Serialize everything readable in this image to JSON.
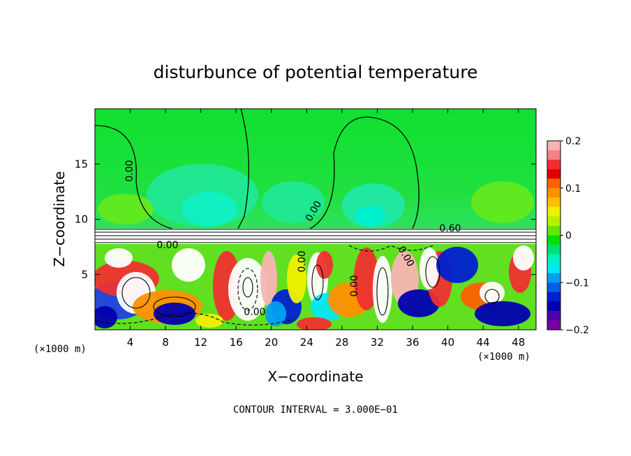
{
  "chart_data": {
    "type": "heatmap",
    "title": "disturbunce of potential temperature",
    "xlabel": "X−coordinate",
    "ylabel": "Z−coordinate",
    "x_unit_left": "(×1000 m)",
    "x_unit_right": "(×1000 m)",
    "xlim": [
      0,
      50
    ],
    "ylim": [
      0,
      20
    ],
    "x_ticks": [
      4,
      8,
      12,
      16,
      20,
      24,
      28,
      32,
      36,
      40,
      44,
      48
    ],
    "y_ticks": [
      5,
      10,
      15
    ],
    "footer": "CONTOUR INTERVAL = 3.000E−01",
    "colorbar": {
      "min": -0.2,
      "max": 0.2,
      "tick_values": [
        0.2,
        0.1,
        0,
        -0.1,
        -0.2
      ],
      "tick_labels": [
        "0.2",
        "0.1",
        "0",
        "−0.1",
        "−0.2"
      ],
      "colors": [
        "#f8b4b4",
        "#f88080",
        "#f03030",
        "#e00000",
        "#ff6000",
        "#ff9000",
        "#ffc000",
        "#f0f000",
        "#b8f000",
        "#60e800",
        "#00e000",
        "#00e070",
        "#00f0c0",
        "#00e8f0",
        "#00a0f0",
        "#0060e8",
        "#0020d0",
        "#0000b0",
        "#5000b0",
        "#7800a8"
      ]
    },
    "contour_labels": [
      "0.00",
      "0.00",
      "0.00",
      "0.00",
      "0.00",
      "0.00",
      "0.00",
      "0.60"
    ]
  }
}
